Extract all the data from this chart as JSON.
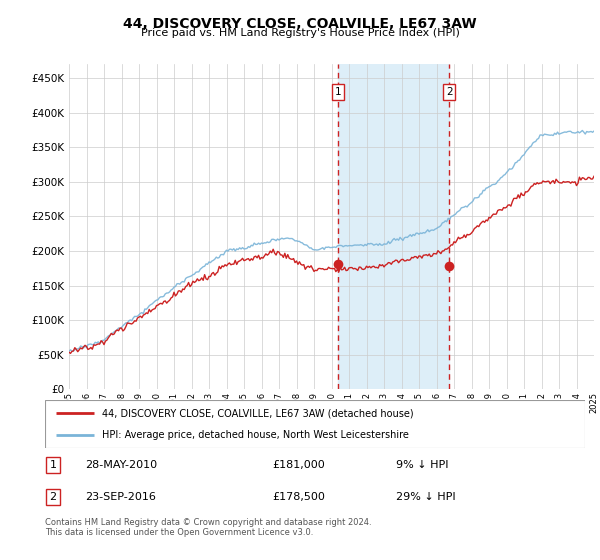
{
  "title": "44, DISCOVERY CLOSE, COALVILLE, LE67 3AW",
  "subtitle": "Price paid vs. HM Land Registry's House Price Index (HPI)",
  "legend_line1": "44, DISCOVERY CLOSE, COALVILLE, LE67 3AW (detached house)",
  "legend_line2": "HPI: Average price, detached house, North West Leicestershire",
  "transaction1_date": "28-MAY-2010",
  "transaction1_price": "£181,000",
  "transaction1_hpi": "9% ↓ HPI",
  "transaction1_year": 2010.38,
  "transaction1_value": 181000,
  "transaction2_date": "23-SEP-2016",
  "transaction2_price": "£178,500",
  "transaction2_hpi": "29% ↓ HPI",
  "transaction2_year": 2016.72,
  "transaction2_value": 178500,
  "footer": "Contains HM Land Registry data © Crown copyright and database right 2024.\nThis data is licensed under the Open Government Licence v3.0.",
  "hpi_color": "#7ab4d8",
  "price_color": "#cc2222",
  "vline_color": "#cc2222",
  "highlight_color": "#ddeef8",
  "ylim": [
    0,
    470000
  ],
  "yticks": [
    0,
    50000,
    100000,
    150000,
    200000,
    250000,
    300000,
    350000,
    400000,
    450000
  ],
  "xmin": 1995,
  "xmax": 2025
}
